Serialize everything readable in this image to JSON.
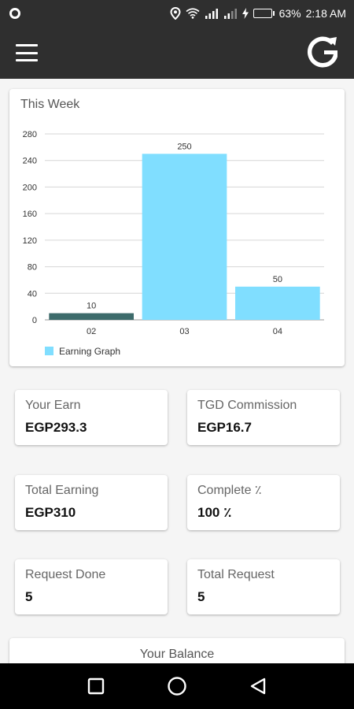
{
  "status_bar": {
    "battery": "63%",
    "time": "2:18 AM",
    "battery_level": 0.63
  },
  "app_bar": {
    "menu_icon": "hamburger-icon",
    "logo_icon": "g-logo-icon"
  },
  "chart_data": {
    "type": "bar",
    "title": "This Week",
    "categories": [
      "02",
      "03",
      "04"
    ],
    "series": [
      {
        "name": "Earning Graph",
        "values": [
          10,
          250,
          50
        ]
      }
    ],
    "bar_colors": [
      "#3d6b6b",
      "#80deff",
      "#80deff"
    ],
    "legend_color": "#80deff",
    "yticks": [
      0,
      40,
      80,
      120,
      160,
      200,
      240,
      280
    ],
    "ylim": [
      0,
      280
    ],
    "grid": true,
    "legend_position": "bottom-left"
  },
  "stats": {
    "your_earn": {
      "label": "Your Earn",
      "value": "EGP293.3"
    },
    "tgd_commission": {
      "label": "TGD Commission",
      "value": "EGP16.7"
    },
    "total_earning": {
      "label": "Total Earning",
      "value": "EGP310"
    },
    "complete": {
      "label": "Complete ٪",
      "value": "100 ٪"
    },
    "request_done": {
      "label": "Request Done",
      "value": "5"
    },
    "total_request": {
      "label": "Total Request",
      "value": "5"
    }
  },
  "balance": {
    "label": "Your Balance"
  },
  "nav": {
    "recent_icon": "square-icon",
    "home_icon": "circle-icon",
    "back_icon": "triangle-back-icon"
  }
}
